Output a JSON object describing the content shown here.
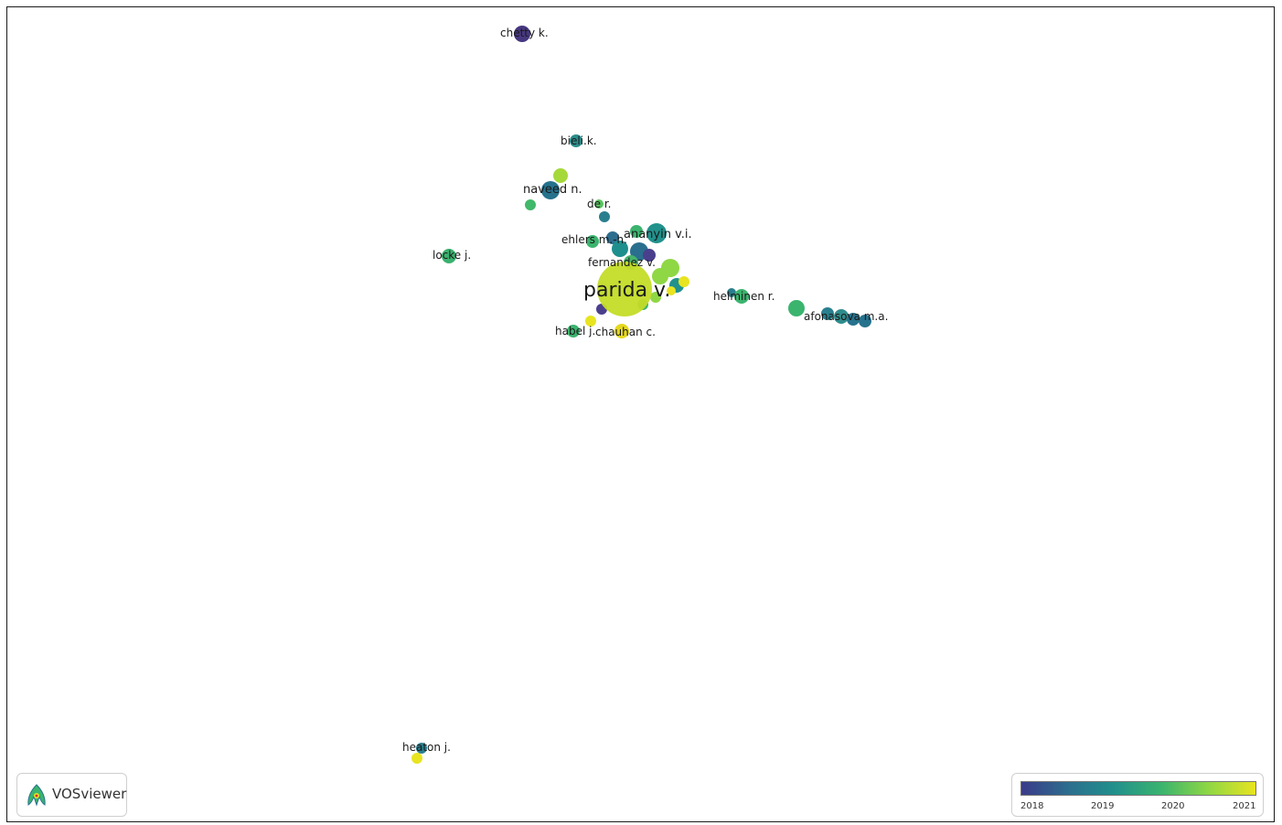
{
  "map": {
    "labels": {
      "chetty": "chetty k.",
      "bieli": "bieli.k.",
      "naveed": "naveed n.",
      "de": "de r.",
      "ehlers": "ehlers m.-h.",
      "ananyin": "ananyin v.i.",
      "locke": "locke j.",
      "fernandez": "fernandez v.",
      "parida": "parida v.",
      "helminen": "helminen r.",
      "afonasova": "afonasova m.a.",
      "habel": "habel j.",
      "chauhan": "chauhan c.",
      "heaton": "heaton j."
    }
  },
  "logo": {
    "text": "VOSviewer",
    "icon": "vosviewer-logo-icon"
  },
  "legend": {
    "ticks": [
      "2018",
      "2019",
      "2020",
      "2021"
    ],
    "colors": [
      "#3b3a8a",
      "#2c6e8e",
      "#21918c",
      "#3bb46e",
      "#8fd744",
      "#e8e420"
    ]
  },
  "colors": {
    "frame": "#1a1a1a",
    "background": "#ffffff"
  }
}
